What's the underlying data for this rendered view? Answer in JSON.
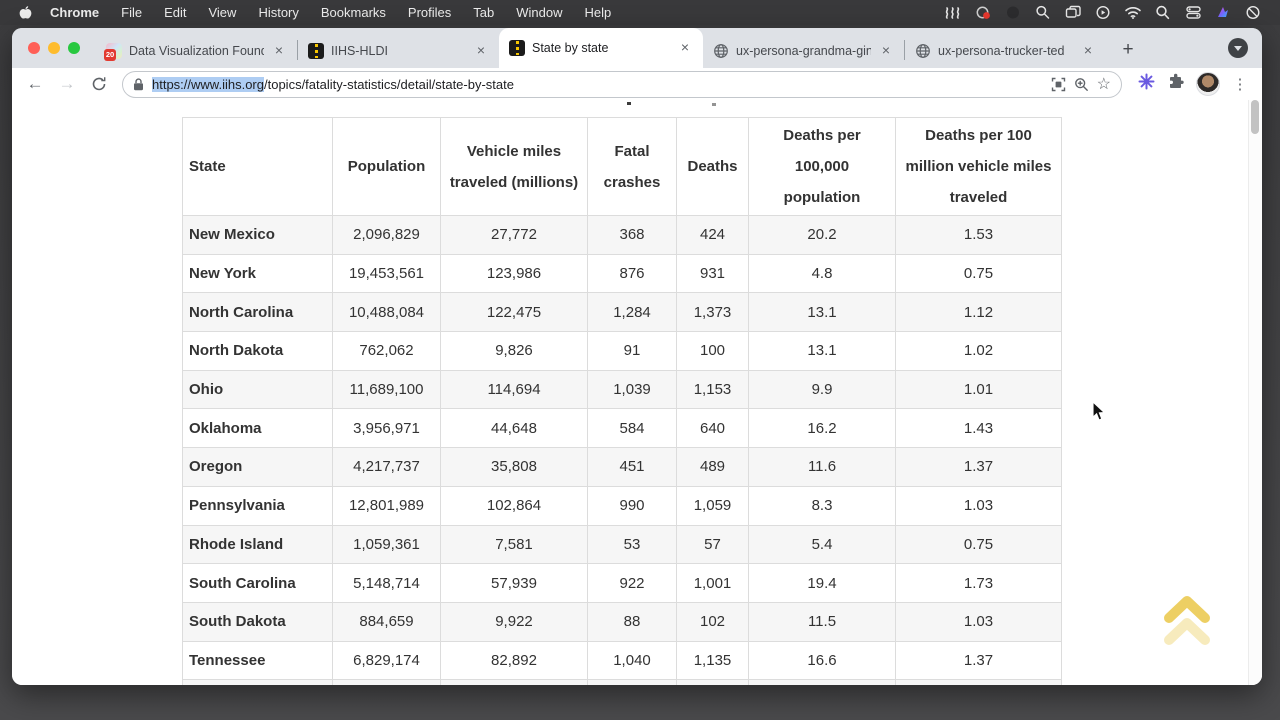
{
  "colors": {
    "menubar_bg": "#39393b",
    "tab_strip_bg": "#dee1e6",
    "url_selection": "#aecdf3",
    "table_stripe": "#f6f6f6",
    "table_border": "#dcdcdc",
    "scroll_top_chevron_strong": "#e8c33c",
    "scroll_top_chevron_faint": "#f2e09a",
    "traffic_red": "#ff5f57",
    "traffic_yellow": "#febc2e",
    "traffic_green": "#28c840"
  },
  "menu_bar": {
    "app_name": "Chrome",
    "items": [
      "File",
      "Edit",
      "View",
      "History",
      "Bookmarks",
      "Profiles",
      "Tab",
      "Window",
      "Help"
    ],
    "status_icons": [
      "waves-icon",
      "recording-red-dot-icon",
      "dim-circle-icon",
      "zoom-magnifier-icon",
      "windows-stack-icon",
      "play-circle-icon",
      "wifi-icon",
      "spotlight-search-icon",
      "control-center-icon",
      "media-color-icon",
      "do-not-disturb-icon"
    ]
  },
  "tabs": [
    {
      "label": "Data Visualization Founda",
      "favicon": "course-badge",
      "badge": "20"
    },
    {
      "label": "IIHS-HLDI",
      "favicon": "road"
    },
    {
      "label": "State by state",
      "favicon": "road",
      "active": true
    },
    {
      "label": "ux-persona-grandma-gin",
      "favicon": "globe"
    },
    {
      "label": "ux-persona-trucker-ted",
      "favicon": "globe"
    }
  ],
  "tab_controls": {
    "close_label": "×",
    "new_tab_label": "+",
    "tab_menu_label": "▼"
  },
  "toolbar": {
    "url_selected": "https://www.iihs.org",
    "url_rest": "/topics/fatality-statistics/detail/state-by-state"
  },
  "table": {
    "columns": [
      "State",
      "Population",
      "Vehicle miles traveled (millions)",
      "Fatal crashes",
      "Deaths",
      "Deaths per 100,000 population",
      "Deaths per 100 million vehicle miles traveled"
    ],
    "rows": [
      [
        "New Mexico",
        "2,096,829",
        "27,772",
        "368",
        "424",
        "20.2",
        "1.53"
      ],
      [
        "New York",
        "19,453,561",
        "123,986",
        "876",
        "931",
        "4.8",
        "0.75"
      ],
      [
        "North Carolina",
        "10,488,084",
        "122,475",
        "1,284",
        "1,373",
        "13.1",
        "1.12"
      ],
      [
        "North Dakota",
        "762,062",
        "9,826",
        "91",
        "100",
        "13.1",
        "1.02"
      ],
      [
        "Ohio",
        "11,689,100",
        "114,694",
        "1,039",
        "1,153",
        "9.9",
        "1.01"
      ],
      [
        "Oklahoma",
        "3,956,971",
        "44,648",
        "584",
        "640",
        "16.2",
        "1.43"
      ],
      [
        "Oregon",
        "4,217,737",
        "35,808",
        "451",
        "489",
        "11.6",
        "1.37"
      ],
      [
        "Pennsylvania",
        "12,801,989",
        "102,864",
        "990",
        "1,059",
        "8.3",
        "1.03"
      ],
      [
        "Rhode Island",
        "1,059,361",
        "7,581",
        "53",
        "57",
        "5.4",
        "0.75"
      ],
      [
        "South Carolina",
        "5,148,714",
        "57,939",
        "922",
        "1,001",
        "19.4",
        "1.73"
      ],
      [
        "South Dakota",
        "884,659",
        "9,922",
        "88",
        "102",
        "11.5",
        "1.03"
      ],
      [
        "Tennessee",
        "6,829,174",
        "82,892",
        "1,040",
        "1,135",
        "16.6",
        "1.37"
      ]
    ]
  }
}
